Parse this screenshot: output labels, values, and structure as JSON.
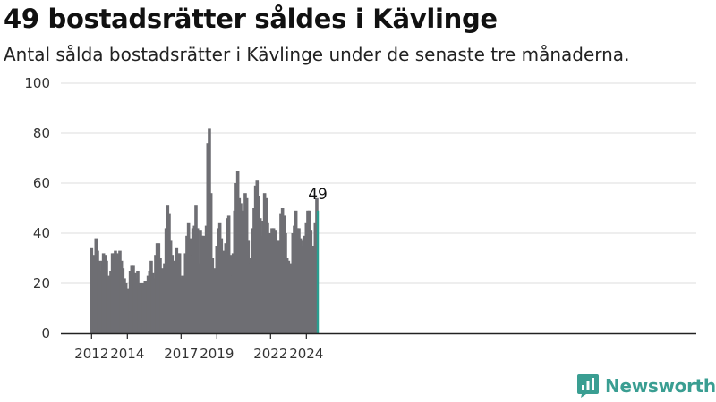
{
  "title": "49 bostadsrätter såldes i Kävlinge",
  "subtitle": "Antal sålda bostadsrätter i Kävlinge under de senaste tre månaderna.",
  "brand": "Newsworthy",
  "colors": {
    "bar": "#6e6e73",
    "highlight": "#2a9d8f",
    "brand": "#3a9e92",
    "grid": "#dddddd"
  },
  "chart_data": {
    "type": "bar",
    "title": "49 bostadsrätter såldes i Kävlinge",
    "subtitle": "Antal sålda bostadsrätter i Kävlinge under de senaste tre månaderna.",
    "xlabel": "",
    "ylabel": "",
    "ylim": [
      0,
      100
    ],
    "yticks": [
      0,
      20,
      40,
      60,
      80,
      100
    ],
    "xticks": [
      "2012",
      "2014",
      "2017",
      "2019",
      "2022",
      "2024"
    ],
    "xtick_positions": [
      2012,
      2014,
      2017,
      2019,
      2022,
      2024
    ],
    "grid": true,
    "start_date": "2012-01",
    "frequency": "monthly",
    "highlight_last": true,
    "value_label": "49",
    "values": [
      34,
      29,
      31,
      38,
      33,
      29,
      25,
      29,
      32,
      31,
      29,
      22,
      23,
      25,
      32,
      32,
      33,
      32,
      31,
      33,
      29,
      26,
      22,
      20,
      18,
      17,
      25,
      27,
      27,
      24,
      22,
      25,
      19,
      20,
      20,
      20,
      21,
      21,
      23,
      25,
      29,
      24,
      22,
      31,
      36,
      36,
      30,
      25,
      26,
      28,
      42,
      51,
      48,
      37,
      31,
      27,
      29,
      34,
      32,
      32,
      22,
      23,
      22,
      32,
      39,
      44,
      38,
      31,
      42,
      43,
      51,
      42,
      28,
      41,
      39,
      39,
      21,
      43,
      76,
      82,
      56,
      30,
      26,
      19,
      35,
      42,
      44,
      38,
      33,
      29,
      36,
      46,
      47,
      31,
      23,
      32,
      49,
      60,
      65,
      54,
      52,
      43,
      49,
      56,
      54,
      37,
      28,
      30,
      42,
      50,
      59,
      61,
      55,
      46,
      39,
      45,
      56,
      54,
      44,
      39,
      40,
      42,
      42,
      41,
      37,
      34,
      37,
      48,
      50,
      47,
      40,
      30,
      29,
      25,
      28,
      40,
      43,
      49,
      42,
      42,
      38,
      35,
      37,
      39,
      44,
      49,
      49,
      41,
      32,
      35,
      44,
      54,
      49
    ]
  }
}
